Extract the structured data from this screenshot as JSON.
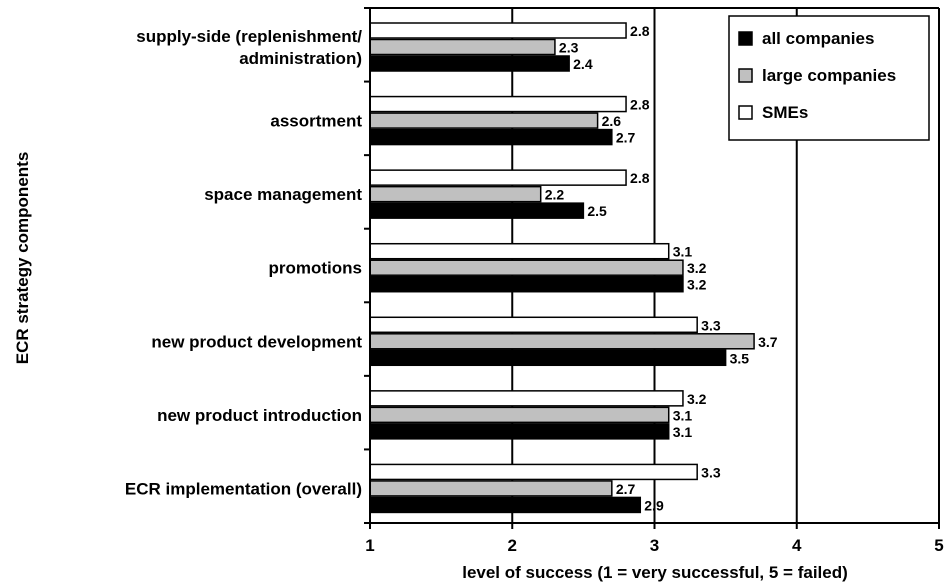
{
  "chart_data": {
    "type": "bar",
    "orientation": "horizontal",
    "title": "",
    "xlabel": "level of success (1 = very successful, 5 = failed)",
    "ylabel": "ECR strategy components",
    "xlim": [
      1,
      5
    ],
    "xticks": [
      "1",
      "2",
      "3",
      "4",
      "5"
    ],
    "grid": "vertical",
    "legend_position": "top-right",
    "categories": [
      [
        "supply-side (replenishment/",
        "administration)"
      ],
      [
        "assortment"
      ],
      [
        "space management"
      ],
      [
        "promotions"
      ],
      [
        "new product development"
      ],
      [
        "new product introduction"
      ],
      [
        "ECR implementation (overall)"
      ]
    ],
    "series": [
      {
        "name": "SMEs",
        "color": "#ffffff",
        "values": [
          2.8,
          2.8,
          2.8,
          3.1,
          3.3,
          3.2,
          3.3
        ],
        "labels": [
          "2.8",
          "2.8",
          "2.8",
          "3.1",
          "3.3",
          "3.2",
          "3.3"
        ]
      },
      {
        "name": "large companies",
        "color": "#c0c0c0",
        "values": [
          2.3,
          2.6,
          2.2,
          3.2,
          3.7,
          3.1,
          2.7
        ],
        "labels": [
          "2.3",
          "2.6",
          "2.2",
          "3.2",
          "3.7",
          "3.1",
          "2.7"
        ]
      },
      {
        "name": "all companies",
        "color": "#000000",
        "values": [
          2.4,
          2.7,
          2.5,
          3.2,
          3.5,
          3.1,
          2.9
        ],
        "labels": [
          "2.4",
          "2.7",
          "2.5",
          "3.2",
          "3.5",
          "3.1",
          "2.9"
        ]
      }
    ],
    "legend_order": [
      "all companies",
      "large companies",
      "SMEs"
    ]
  }
}
